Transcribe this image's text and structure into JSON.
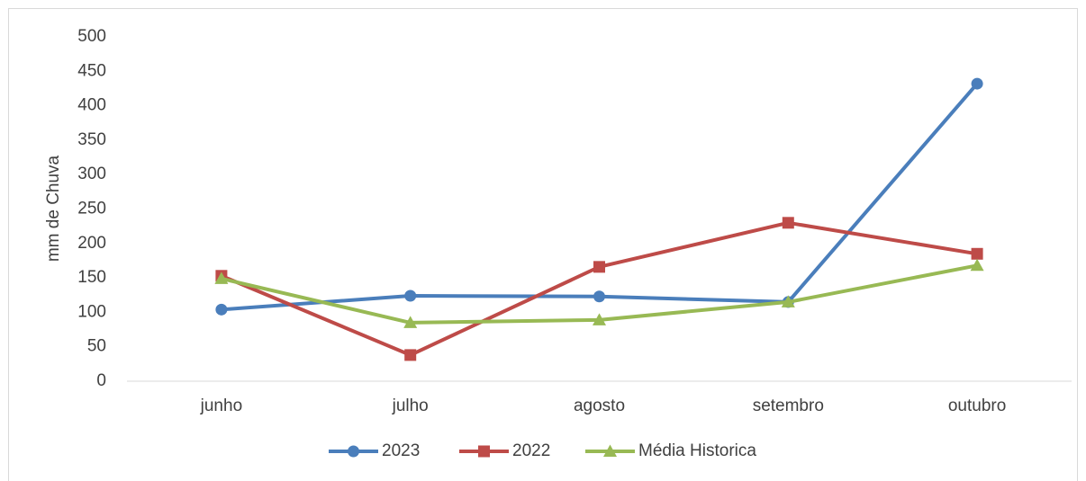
{
  "chart_data": {
    "type": "line",
    "y_label": "mm de Chuva",
    "categories": [
      "junho",
      "julho",
      "agosto",
      "setembro",
      "outubro"
    ],
    "series": [
      {
        "name": "2023",
        "color": "#4a7ebb",
        "marker": "circle",
        "values": [
          104,
          124,
          123,
          115,
          432
        ]
      },
      {
        "name": "2022",
        "color": "#be4b48",
        "marker": "square",
        "values": [
          153,
          38,
          166,
          230,
          185
        ]
      },
      {
        "name": "Média Historica",
        "color": "#98b954",
        "marker": "triangle",
        "values": [
          149,
          85,
          89,
          115,
          168
        ]
      }
    ],
    "ylim": [
      0,
      500
    ],
    "yticks": [
      0,
      50,
      100,
      150,
      200,
      250,
      300,
      350,
      400,
      450,
      500
    ],
    "grid": false,
    "legend": "bottom"
  }
}
